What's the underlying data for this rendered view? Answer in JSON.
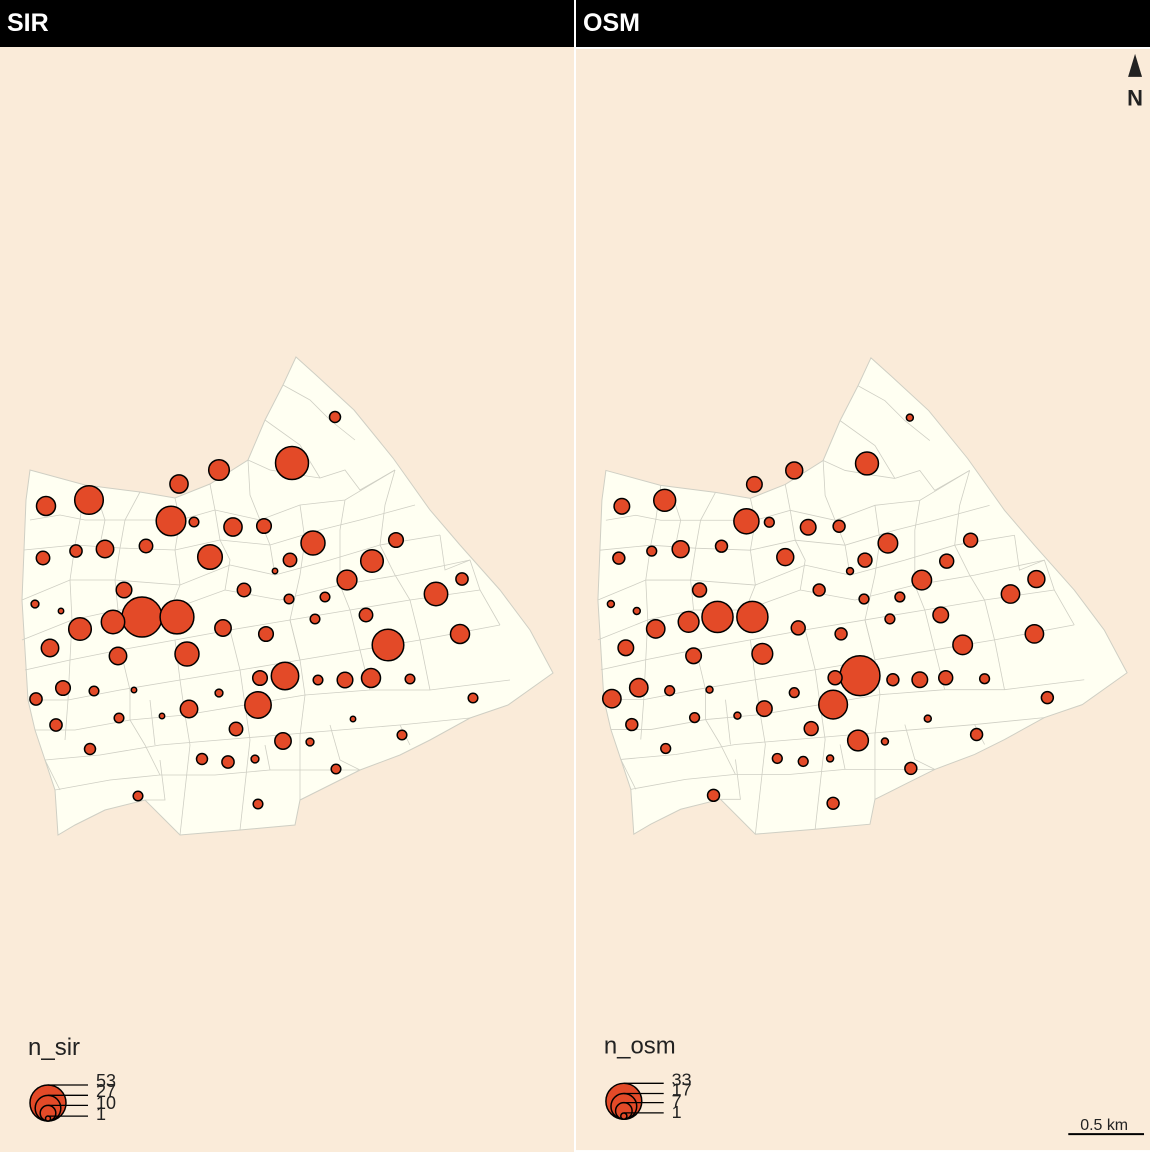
{
  "colors": {
    "background": "#faebd9",
    "polygon_fill": "#fffff2",
    "polygon_stroke": "#cfcfc4",
    "bubble_fill": "#e34a28",
    "bubble_stroke": "#000000",
    "header": "#000000",
    "header_text": "#ffffff"
  },
  "icons": [
    "north-arrow-icon",
    "scale-bar-icon"
  ],
  "panels": [
    {
      "title": "SIR",
      "legend": {
        "title": "n_sir",
        "values": [
          "53",
          "27",
          "10",
          "1"
        ]
      },
      "bubbles": [
        {
          "name": "d01",
          "value": 12
        },
        {
          "name": "d02",
          "value": 27
        },
        {
          "name": "d03",
          "value": 11
        },
        {
          "name": "d04",
          "value": 14
        },
        {
          "name": "d05",
          "value": 5
        },
        {
          "name": "d06",
          "value": 36
        },
        {
          "name": "d07",
          "value": 4
        },
        {
          "name": "d08",
          "value": 3
        },
        {
          "name": "d09",
          "value": 5
        },
        {
          "name": "d10",
          "value": 29
        },
        {
          "name": "d11",
          "value": 11
        },
        {
          "name": "d12",
          "value": 7
        },
        {
          "name": "d13",
          "value": 10
        },
        {
          "name": "d14",
          "value": 2
        },
        {
          "name": "d15",
          "value": 19
        },
        {
          "name": "d16",
          "value": 7
        },
        {
          "name": "d17",
          "value": 18
        },
        {
          "name": "d18",
          "value": 17
        },
        {
          "name": "d19",
          "value": 6
        },
        {
          "name": "d20",
          "value": 1
        },
        {
          "name": "d21",
          "value": 2
        },
        {
          "name": "d22",
          "value": 6
        },
        {
          "name": "d23",
          "value": 1
        },
        {
          "name": "d24",
          "value": 17
        },
        {
          "name": "d25",
          "value": 53
        },
        {
          "name": "d26",
          "value": 38
        },
        {
          "name": "d27",
          "value": 10
        },
        {
          "name": "d28",
          "value": 3
        },
        {
          "name": "d29",
          "value": 8
        },
        {
          "name": "d30",
          "value": 3
        },
        {
          "name": "d31",
          "value": 19
        },
        {
          "name": "d32",
          "value": 9
        },
        {
          "name": "d33",
          "value": 20
        },
        {
          "name": "d34",
          "value": 7
        },
        {
          "name": "d35",
          "value": 3
        },
        {
          "name": "d36",
          "value": 6
        },
        {
          "name": "d37",
          "value": 13
        },
        {
          "name": "d38",
          "value": 7
        },
        {
          "name": "d39",
          "value": 3
        },
        {
          "name": "d40",
          "value": 10
        },
        {
          "name": "d41",
          "value": 6
        },
        {
          "name": "d42",
          "value": 6
        },
        {
          "name": "d43",
          "value": 33
        },
        {
          "name": "d44",
          "value": 8
        },
        {
          "name": "d45",
          "value": 12
        },
        {
          "name": "d46",
          "value": 25
        },
        {
          "name": "d47",
          "value": 23
        },
        {
          "name": "d48",
          "value": 9
        },
        {
          "name": "d49",
          "value": 12
        },
        {
          "name": "d50",
          "value": 18
        },
        {
          "name": "d51",
          "value": 3
        },
        {
          "name": "d52",
          "value": 5
        },
        {
          "name": "d53",
          "value": 5
        },
        {
          "name": "d54",
          "value": 7
        },
        {
          "name": "d55",
          "value": 3
        },
        {
          "name": "d56",
          "value": 1
        },
        {
          "name": "d57",
          "value": 2
        },
        {
          "name": "d58",
          "value": 10
        },
        {
          "name": "d59",
          "value": 1
        },
        {
          "name": "d60",
          "value": 1
        },
        {
          "name": "d61",
          "value": 3
        },
        {
          "name": "d62",
          "value": 6
        },
        {
          "name": "d63",
          "value": 5
        },
        {
          "name": "d64",
          "value": 2
        },
        {
          "name": "d65",
          "value": 4
        },
        {
          "name": "d66",
          "value": 4
        }
      ]
    },
    {
      "title": "OSM",
      "legend": {
        "title": "n_osm",
        "values": [
          "33",
          "17",
          "7",
          "1"
        ]
      },
      "bubbles": [
        {
          "name": "d01",
          "value": 5
        },
        {
          "name": "d02",
          "value": 10
        },
        {
          "name": "d03",
          "value": 5
        },
        {
          "name": "d04",
          "value": 6
        },
        {
          "name": "d05",
          "value": 2
        },
        {
          "name": "d06",
          "value": 11
        },
        {
          "name": "d07",
          "value": 1
        },
        {
          "name": "d08",
          "value": 2
        },
        {
          "name": "d09",
          "value": 2
        },
        {
          "name": "d10",
          "value": 13
        },
        {
          "name": "d11",
          "value": 5
        },
        {
          "name": "d12",
          "value": 3
        },
        {
          "name": "d13",
          "value": 6
        },
        {
          "name": "d14",
          "value": 1
        },
        {
          "name": "d15",
          "value": 8
        },
        {
          "name": "d16",
          "value": 4
        },
        {
          "name": "d17",
          "value": 9
        },
        {
          "name": "d18",
          "value": 4
        },
        {
          "name": "d19",
          "value": 3
        },
        {
          "name": "d20",
          "value": 1
        },
        {
          "name": "d21",
          "value": 1
        },
        {
          "name": "d22",
          "value": 3
        },
        {
          "name": "d23",
          "value": 1
        },
        {
          "name": "d24",
          "value": 7
        },
        {
          "name": "d25",
          "value": 20
        },
        {
          "name": "d26",
          "value": 20
        },
        {
          "name": "d27",
          "value": 5
        },
        {
          "name": "d28",
          "value": 2
        },
        {
          "name": "d29",
          "value": 4
        },
        {
          "name": "d30",
          "value": 2
        },
        {
          "name": "d31",
          "value": 9
        },
        {
          "name": "d32",
          "value": 4
        },
        {
          "name": "d33",
          "value": 6
        },
        {
          "name": "d34",
          "value": 3
        },
        {
          "name": "d35",
          "value": 2
        },
        {
          "name": "d36",
          "value": 5
        },
        {
          "name": "d37",
          "value": 8
        },
        {
          "name": "d38",
          "value": 4
        },
        {
          "name": "d39",
          "value": 3
        },
        {
          "name": "d40",
          "value": 5
        },
        {
          "name": "d41",
          "value": 4
        },
        {
          "name": "d42",
          "value": 4
        },
        {
          "name": "d43",
          "value": 8
        },
        {
          "name": "d44",
          "value": 5
        },
        {
          "name": "d45",
          "value": 4
        },
        {
          "name": "d46",
          "value": 33
        },
        {
          "name": "d47",
          "value": 17
        },
        {
          "name": "d48",
          "value": 9
        },
        {
          "name": "d49",
          "value": 7
        },
        {
          "name": "d50",
          "value": 7
        },
        {
          "name": "d51",
          "value": 2
        },
        {
          "name": "d52",
          "value": 7
        },
        {
          "name": "d53",
          "value": 6
        },
        {
          "name": "d54",
          "value": 7
        },
        {
          "name": "d55",
          "value": 2
        },
        {
          "name": "d56",
          "value": 1
        },
        {
          "name": "d57",
          "value": 2
        },
        {
          "name": "d58",
          "value": 5
        },
        {
          "name": "d59",
          "value": 1
        },
        {
          "name": "d60",
          "value": 1
        },
        {
          "name": "d61",
          "value": 2
        },
        {
          "name": "d62",
          "value": 3
        },
        {
          "name": "d63",
          "value": 3
        },
        {
          "name": "d64",
          "value": 1
        },
        {
          "name": "d65",
          "value": 2
        },
        {
          "name": "d66",
          "value": 2
        }
      ]
    }
  ],
  "north_arrow": {
    "label": "N"
  },
  "scale_bar": {
    "label": "0.5 km"
  }
}
